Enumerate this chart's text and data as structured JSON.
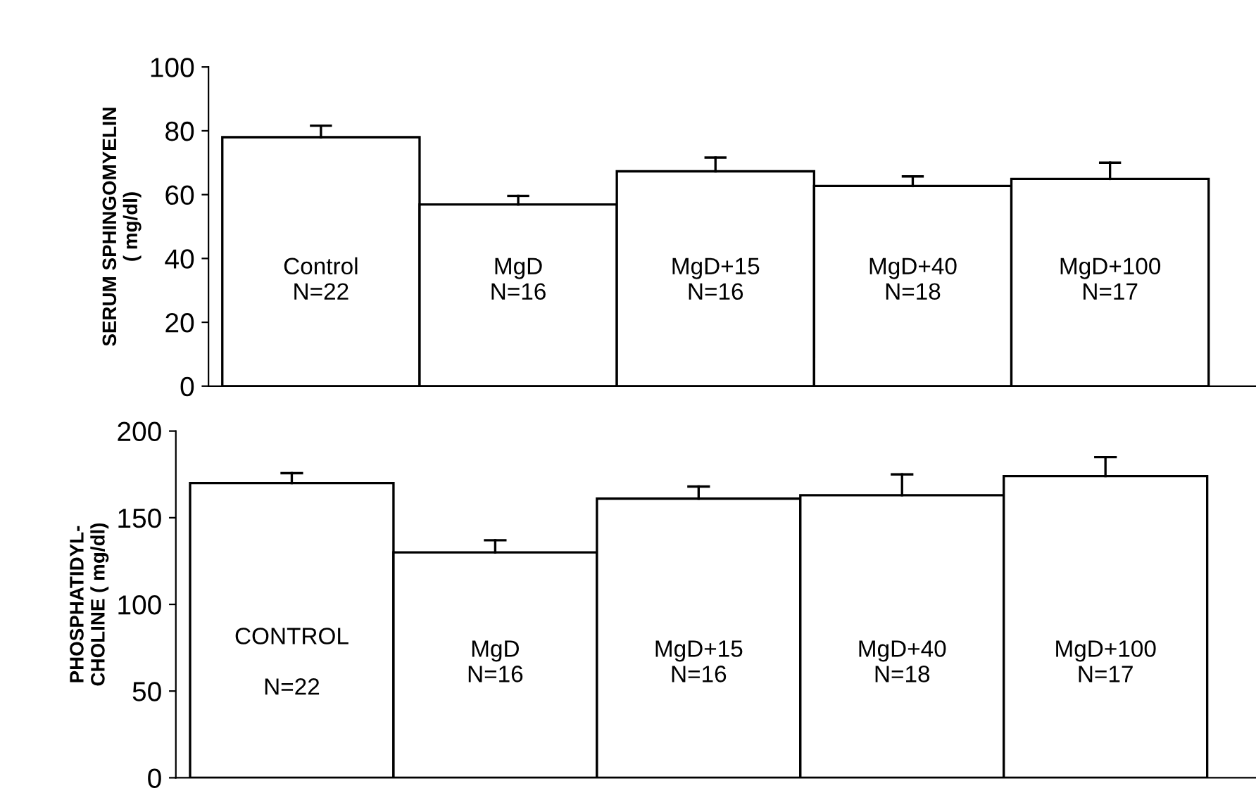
{
  "chart_data": [
    {
      "type": "bar",
      "ylabel": "SERUM SPHINGOMYELIN\n( mg/dl)",
      "categories": [
        "Control\nN=22",
        "MgD\nN=16",
        "MgD+15\nN=16",
        "MgD+40\nN=18",
        "MgD+100\nN=17"
      ],
      "values": [
        78,
        56.9,
        67.3,
        62.7,
        64.9
      ],
      "errors": [
        [
          78,
          81.6
        ],
        [
          56.9,
          59.6
        ],
        [
          67.3,
          71.6
        ],
        [
          62.7,
          65.7
        ],
        [
          64.9,
          70
        ]
      ],
      "color": "#ffffff",
      "ylim": [
        0,
        100
      ],
      "yticks": [
        0,
        20,
        40,
        60,
        80,
        100
      ],
      "grid": false,
      "legend": false
    },
    {
      "type": "bar",
      "ylabel": "PHOSPHATIDYL-\nCHOLINE ( mg/dl)",
      "categories": [
        "CONTROL\n\nN=22",
        "MgD\nN=16",
        "MgD+15\nN=16",
        "MgD+40\nN=18",
        "MgD+100\nN=17"
      ],
      "values": [
        170,
        130,
        161,
        163,
        174
      ],
      "errors": [
        [
          170,
          175.7
        ],
        [
          130,
          137
        ],
        [
          161,
          168
        ],
        [
          163,
          175
        ],
        [
          174,
          185
        ]
      ],
      "color": "#ffffff",
      "ylim": [
        0,
        200
      ],
      "yticks": [
        0,
        50,
        100,
        150,
        200
      ],
      "grid": false,
      "legend": false
    }
  ]
}
